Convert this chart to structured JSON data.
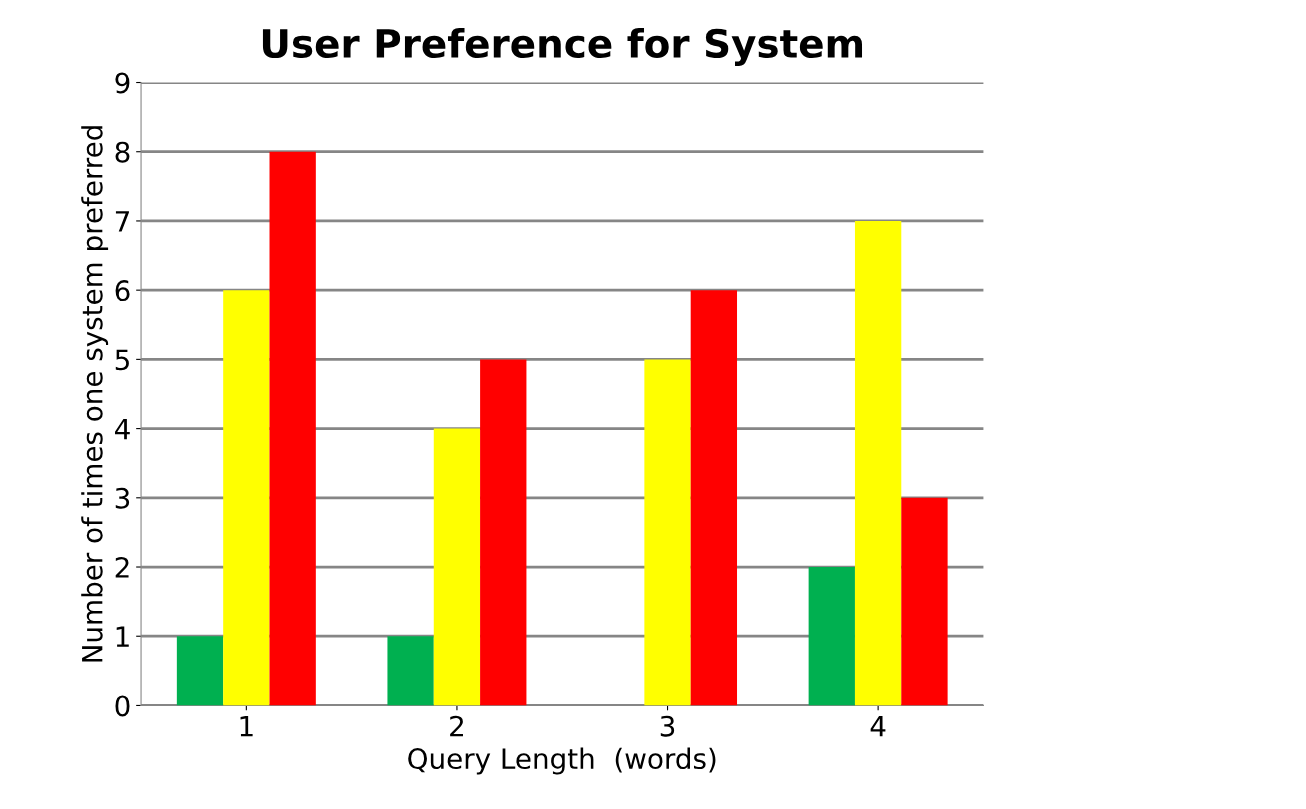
{
  "chart_data": {
    "type": "bar",
    "title": "User Preference for System",
    "xlabel": "Query Length  (words)",
    "ylabel": "Number of times one system preferred",
    "categories": [
      "1",
      "2",
      "3",
      "4"
    ],
    "series": [
      {
        "color": "#00b050",
        "values": [
          1,
          1,
          0,
          2
        ]
      },
      {
        "color": "#ffff00",
        "values": [
          6,
          4,
          5,
          7
        ]
      },
      {
        "color": "#ff0000",
        "values": [
          8,
          5,
          6,
          3
        ]
      }
    ],
    "ylim": [
      0,
      9
    ],
    "yticks": [
      0,
      1,
      2,
      3,
      4,
      5,
      6,
      7,
      8,
      9
    ],
    "grid": "y"
  }
}
